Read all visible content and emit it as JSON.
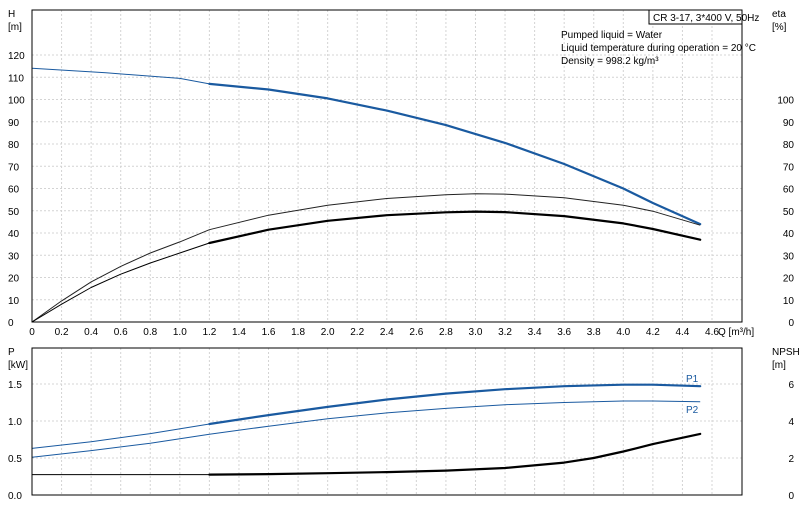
{
  "chart_data": [
    {
      "type": "line",
      "title_box": "CR 3-17, 3*400 V, 50Hz",
      "info_lines": [
        "Pumped liquid = Water",
        "Liquid temperature during operation = 20 °C",
        "Density = 998.2 kg/m³"
      ],
      "y_left_label": [
        "H",
        "[m]"
      ],
      "y_right_label": [
        "eta",
        "[%]"
      ],
      "x_label": "Q [m³/h]",
      "x_range": [
        0,
        4.8
      ],
      "x_ticks": [
        "0",
        "0.2",
        "0.4",
        "0.6",
        "0.8",
        "1.0",
        "1.2",
        "1.4",
        "1.6",
        "1.8",
        "2.0",
        "2.2",
        "2.4",
        "2.6",
        "2.8",
        "3.0",
        "3.2",
        "3.4",
        "3.6",
        "3.8",
        "4.0",
        "4.2",
        "4.4",
        "4.6"
      ],
      "y_left_range": [
        0,
        125
      ],
      "y_left_ticks": [
        "0",
        "10",
        "20",
        "30",
        "40",
        "50",
        "60",
        "70",
        "80",
        "90",
        "100",
        "110",
        "120"
      ],
      "y_right_range": [
        0,
        125
      ],
      "y_right_ticks": [
        "0",
        "10",
        "20",
        "30",
        "40",
        "50",
        "60",
        "70",
        "80",
        "90",
        "100"
      ],
      "grid": true,
      "series": [
        {
          "axis": "left",
          "color": "#1a5aa0",
          "thin": [
            [
              0,
              114
            ],
            [
              0.5,
              112
            ],
            [
              1.0,
              109.5
            ],
            [
              1.2,
              107
            ]
          ],
          "thick": [
            [
              1.2,
              107
            ],
            [
              1.6,
              104.5
            ],
            [
              2.0,
              100.5
            ],
            [
              2.4,
              95
            ],
            [
              2.8,
              88.5
            ],
            [
              3.2,
              80.5
            ],
            [
              3.6,
              71
            ],
            [
              4.0,
              60
            ],
            [
              4.2,
              53.5
            ],
            [
              4.52,
              44
            ]
          ]
        },
        {
          "axis": "right",
          "color": "#222222",
          "thin": [
            [
              0,
              0
            ],
            [
              0.2,
              9.5
            ],
            [
              0.4,
              18
            ],
            [
              0.6,
              25
            ],
            [
              0.8,
              31
            ],
            [
              1.0,
              36
            ],
            [
              1.2,
              41.5
            ],
            [
              1.6,
              48
            ],
            [
              2.0,
              52.5
            ],
            [
              2.4,
              55.5
            ],
            [
              2.8,
              57.2
            ],
            [
              3.0,
              57.6
            ],
            [
              3.2,
              57.5
            ],
            [
              3.6,
              55.8
            ],
            [
              4.0,
              52.5
            ],
            [
              4.2,
              49.8
            ],
            [
              4.52,
              43.5
            ]
          ],
          "thick": []
        },
        {
          "axis": "right",
          "color": "#000000",
          "thin": [
            [
              0,
              0
            ],
            [
              0.2,
              8
            ],
            [
              0.4,
              15.5
            ],
            [
              0.6,
              21.5
            ],
            [
              0.8,
              26.5
            ],
            [
              1.0,
              31
            ],
            [
              1.2,
              35.5
            ]
          ],
          "thick": [
            [
              1.2,
              35.5
            ],
            [
              1.6,
              41.5
            ],
            [
              2.0,
              45.5
            ],
            [
              2.4,
              48
            ],
            [
              2.8,
              49.3
            ],
            [
              3.0,
              49.6
            ],
            [
              3.2,
              49.4
            ],
            [
              3.6,
              47.6
            ],
            [
              4.0,
              44.3
            ],
            [
              4.2,
              41.8
            ],
            [
              4.52,
              37
            ]
          ]
        }
      ]
    },
    {
      "type": "line",
      "y_left_label": [
        "P",
        "[kW]"
      ],
      "y_right_label": [
        "NPSH",
        "[m]"
      ],
      "x_range": [
        0,
        4.8
      ],
      "y_left_range": [
        0,
        1.75
      ],
      "y_left_ticks": [
        "0.0",
        "0.5",
        "1.0",
        "1.5"
      ],
      "y_right_range": [
        0,
        7
      ],
      "y_right_ticks": [
        "0",
        "2",
        "4",
        "6"
      ],
      "grid": true,
      "series": [
        {
          "name": "P1",
          "axis": "left",
          "color": "#1a5aa0",
          "thin": [
            [
              0,
              0.63
            ],
            [
              0.4,
              0.72
            ],
            [
              0.8,
              0.83
            ],
            [
              1.2,
              0.96
            ]
          ],
          "thick": [
            [
              1.2,
              0.96
            ],
            [
              1.6,
              1.08
            ],
            [
              2.0,
              1.19
            ],
            [
              2.4,
              1.29
            ],
            [
              2.8,
              1.37
            ],
            [
              3.2,
              1.43
            ],
            [
              3.6,
              1.47
            ],
            [
              4.0,
              1.49
            ],
            [
              4.2,
              1.49
            ],
            [
              4.52,
              1.47
            ]
          ]
        },
        {
          "name": "P2",
          "axis": "left",
          "color": "#1a5aa0",
          "thin": [
            [
              0,
              0.51
            ],
            [
              0.4,
              0.6
            ],
            [
              0.8,
              0.7
            ],
            [
              1.2,
              0.82
            ],
            [
              1.6,
              0.93
            ],
            [
              2.0,
              1.03
            ],
            [
              2.4,
              1.11
            ],
            [
              2.8,
              1.17
            ],
            [
              3.2,
              1.22
            ],
            [
              3.6,
              1.25
            ],
            [
              4.0,
              1.27
            ],
            [
              4.2,
              1.27
            ],
            [
              4.52,
              1.26
            ]
          ],
          "thick": []
        },
        {
          "name": "",
          "axis": "right",
          "color": "#000000",
          "thin": [
            [
              0,
              1.1
            ],
            [
              0.6,
              1.1
            ],
            [
              1.2,
              1.1
            ]
          ],
          "thick": [
            [
              1.2,
              1.1
            ],
            [
              1.6,
              1.13
            ],
            [
              2.0,
              1.18
            ],
            [
              2.4,
              1.24
            ],
            [
              2.8,
              1.32
            ],
            [
              3.2,
              1.46
            ],
            [
              3.6,
              1.75
            ],
            [
              3.8,
              2.0
            ],
            [
              4.0,
              2.35
            ],
            [
              4.2,
              2.75
            ],
            [
              4.52,
              3.3
            ]
          ]
        }
      ]
    }
  ]
}
